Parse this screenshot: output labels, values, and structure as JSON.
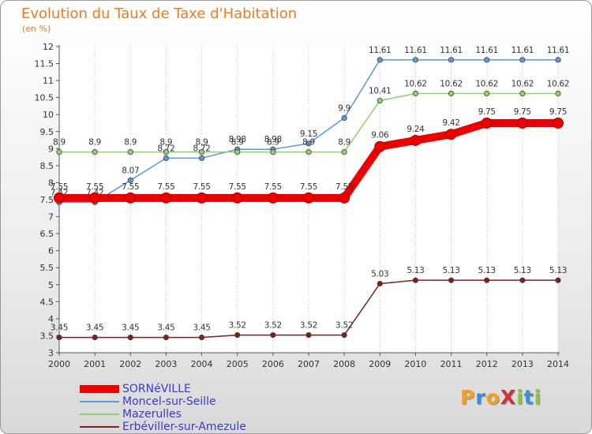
{
  "title": "Evolution du Taux de Taxe d'Habitation",
  "unit_label": "(en %)",
  "logo": {
    "text": "ProXiti",
    "letters": [
      {
        "ch": "P",
        "color": "#f5a020"
      },
      {
        "ch": "r",
        "color": "#3a8fd8"
      },
      {
        "ch": "o",
        "color": "#f5a020"
      },
      {
        "ch": "X",
        "color": "#cc3333"
      },
      {
        "ch": "i",
        "color": "#8cc63f"
      },
      {
        "ch": "t",
        "color": "#3a8fd8"
      },
      {
        "ch": "i",
        "color": "#8cc63f"
      }
    ]
  },
  "chart_data": {
    "type": "line",
    "x": [
      2000,
      2001,
      2002,
      2003,
      2004,
      2005,
      2006,
      2007,
      2008,
      2009,
      2010,
      2011,
      2012,
      2013,
      2014
    ],
    "xlim": [
      2000,
      2014
    ],
    "ylim": [
      3,
      12
    ],
    "yticks": [
      3,
      3.5,
      4,
      4.5,
      5,
      5.5,
      6,
      6.5,
      7,
      7.5,
      8,
      8.5,
      9,
      9.5,
      10,
      10.5,
      11,
      11.5,
      12
    ],
    "grid": {
      "vertical": true,
      "horizontal": false
    },
    "legend_position": "bottom-left",
    "series": [
      {
        "name": "SORNéVILLE",
        "color": "#ee0000",
        "emphasis": true,
        "values": [
          7.55,
          7.55,
          7.55,
          7.55,
          7.55,
          7.55,
          7.55,
          7.55,
          7.55,
          9.06,
          9.24,
          9.42,
          9.75,
          9.75,
          9.75
        ],
        "labels": [
          "7.55",
          "7.55",
          "7.55",
          "7.55",
          "7.55",
          "7.55",
          "7.55",
          "7.55",
          "7.55",
          "9.06",
          "9.24",
          "9.42",
          "9.75",
          "9.75",
          "9.75"
        ]
      },
      {
        "name": "Moncel-sur-Seille",
        "color": "#5a9bd5",
        "emphasis": false,
        "values": [
          7.42,
          7.42,
          8.07,
          8.72,
          8.72,
          8.98,
          8.98,
          9.15,
          9.9,
          11.61,
          11.61,
          11.61,
          11.61,
          11.61,
          11.61
        ],
        "labels": [
          "7.42",
          "7.42",
          "8.07",
          "8.72",
          "8.72",
          "8.98",
          "8.98",
          "9.15",
          "9.9",
          "11.61",
          "11.61",
          "11.61",
          "11.61",
          "11.61",
          "11.61"
        ]
      },
      {
        "name": "Mazerulles",
        "color": "#8fd16a",
        "emphasis": false,
        "values": [
          8.9,
          8.9,
          8.9,
          8.9,
          8.9,
          8.9,
          8.9,
          8.9,
          8.9,
          10.41,
          10.62,
          10.62,
          10.62,
          10.62,
          10.62
        ],
        "labels": [
          "8.9",
          "8.9",
          "8.9",
          "8.9",
          "8.9",
          "8.9",
          "8.9",
          "8.9",
          "8.9",
          "10.41",
          "10.62",
          "10.62",
          "10.62",
          "10.62",
          "10.62"
        ]
      },
      {
        "name": "Erbéviller-sur-Amezule",
        "color": "#7a2020",
        "emphasis": false,
        "values": [
          3.45,
          3.45,
          3.45,
          3.45,
          3.45,
          3.52,
          3.52,
          3.52,
          3.52,
          5.03,
          5.13,
          5.13,
          5.13,
          5.13,
          5.13
        ],
        "labels": [
          "3.45",
          "3.45",
          "3.45",
          "3.45",
          "3.45",
          "3.52",
          "3.52",
          "3.52",
          "3.52",
          "5.03",
          "5.13",
          "5.13",
          "5.13",
          "5.13",
          "5.13"
        ]
      }
    ]
  }
}
